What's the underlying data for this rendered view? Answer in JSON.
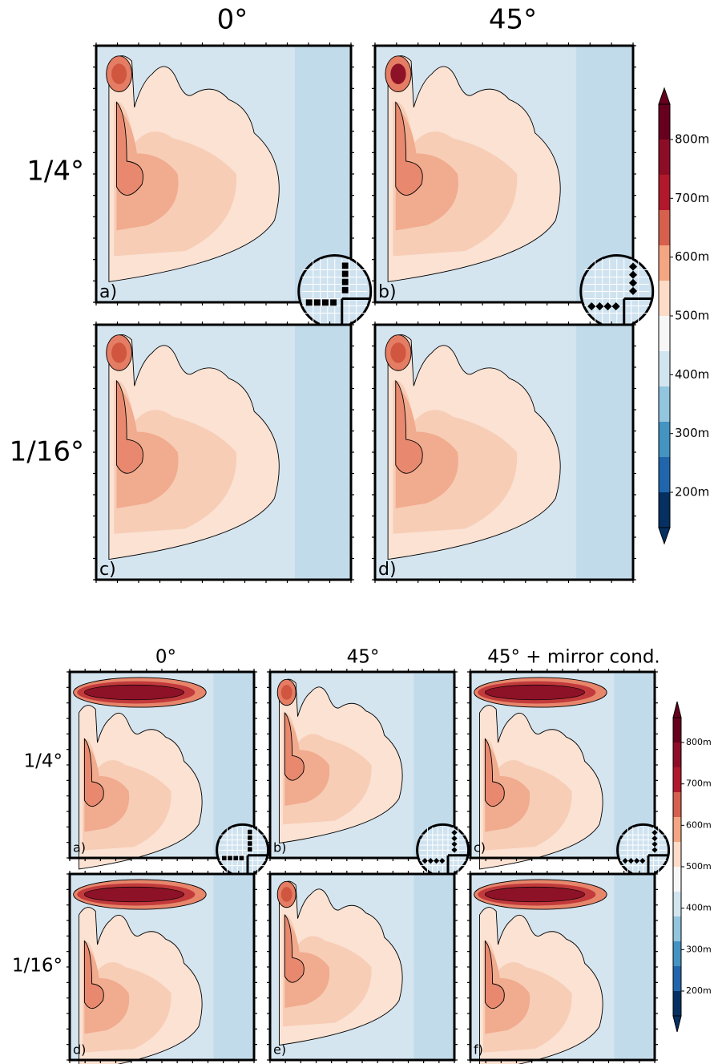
{
  "figures": [
    {
      "column_titles": [
        "0°",
        "45°"
      ],
      "row_titles": [
        "1/4°",
        "1/16°"
      ],
      "panel_labels": [
        "a)",
        "b)",
        "c)",
        "d)"
      ],
      "colorbar_labels": [
        "800m",
        "700m",
        "600m",
        "500m",
        "400m",
        "300m",
        "200m"
      ]
    },
    {
      "column_titles": [
        "0°",
        "45°",
        "45° + mirror cond."
      ],
      "row_titles": [
        "1/4°",
        "1/16°"
      ],
      "panel_labels": [
        "a)",
        "b)",
        "c)",
        "d)",
        "e)",
        "f)"
      ],
      "colorbar_labels": [
        "800m",
        "700m",
        "600m",
        "500m",
        "400m",
        "300m",
        "200m"
      ]
    }
  ]
}
